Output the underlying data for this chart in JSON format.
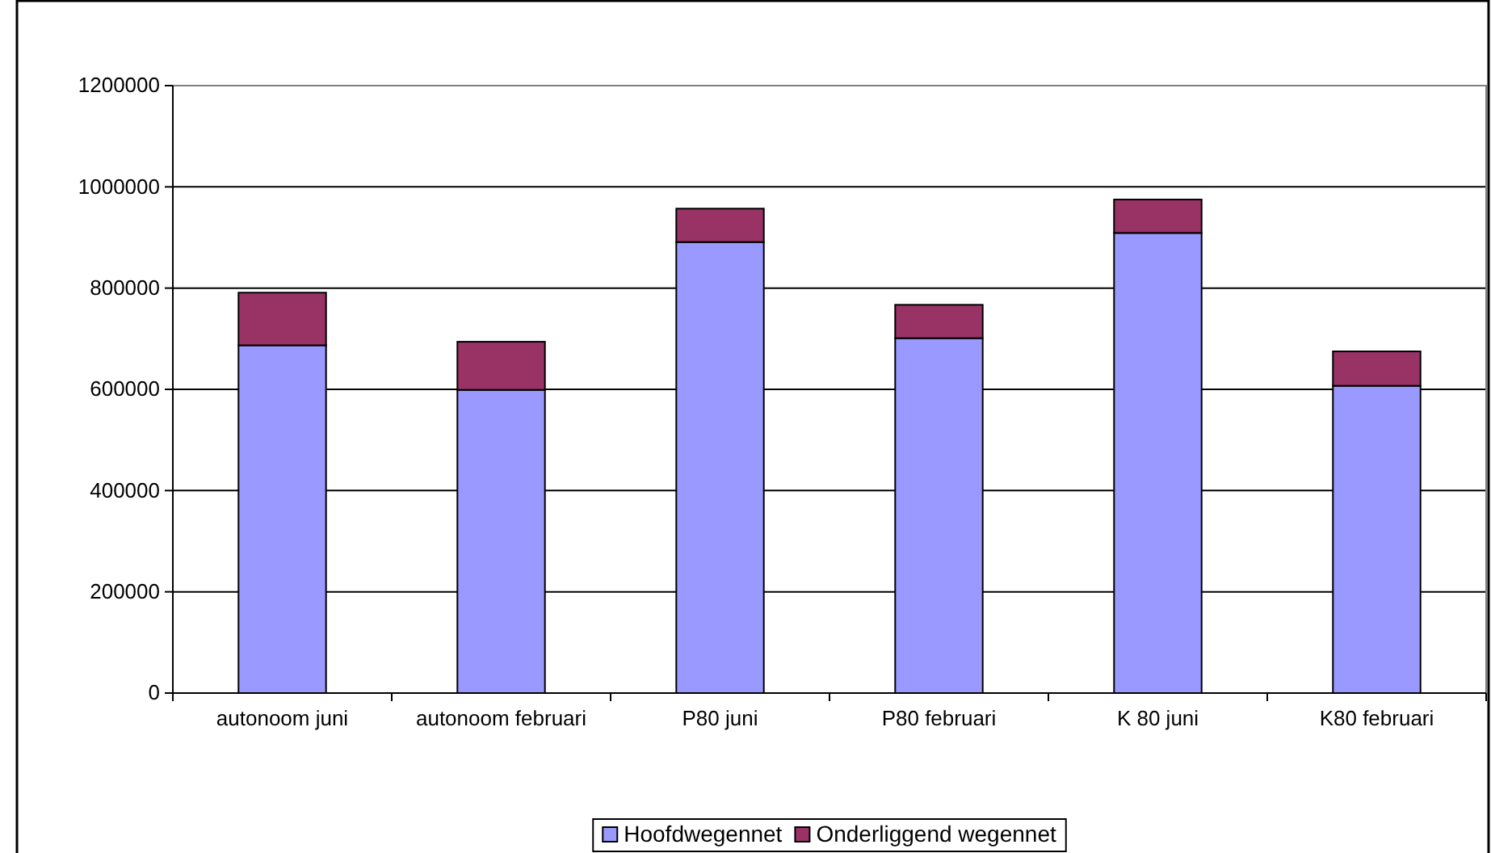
{
  "chart_data": {
    "type": "bar",
    "stacked": true,
    "categories": [
      "autonoom juni",
      "autonoom februari",
      "P80 juni",
      "P80 februari",
      "K 80 juni",
      "K80 februari"
    ],
    "series": [
      {
        "name": "Hoofdwegennet",
        "color": "#9999ff",
        "values": [
          687000,
          599000,
          891000,
          701000,
          909000,
          607000
        ]
      },
      {
        "name": "Onderliggend wegennet",
        "color": "#993366",
        "values": [
          104000,
          95000,
          66000,
          66000,
          66000,
          68000
        ]
      }
    ],
    "ylim": [
      0,
      1200000
    ],
    "yticks": [
      0,
      200000,
      400000,
      600000,
      800000,
      1000000,
      1200000
    ],
    "grid": "y",
    "legend": "bottom"
  }
}
